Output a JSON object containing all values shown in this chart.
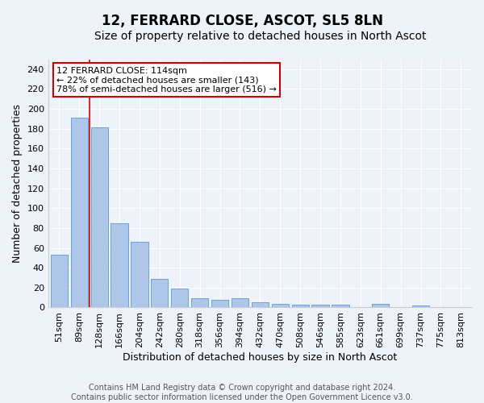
{
  "title": "12, FERRARD CLOSE, ASCOT, SL5 8LN",
  "subtitle": "Size of property relative to detached houses in North Ascot",
  "xlabel": "Distribution of detached houses by size in North Ascot",
  "ylabel": "Number of detached properties",
  "categories": [
    "51sqm",
    "89sqm",
    "128sqm",
    "166sqm",
    "204sqm",
    "242sqm",
    "280sqm",
    "318sqm",
    "356sqm",
    "394sqm",
    "432sqm",
    "470sqm",
    "508sqm",
    "546sqm",
    "585sqm",
    "623sqm",
    "661sqm",
    "699sqm",
    "737sqm",
    "775sqm",
    "813sqm"
  ],
  "values": [
    53,
    191,
    181,
    85,
    66,
    29,
    19,
    9,
    8,
    9,
    5,
    4,
    3,
    3,
    3,
    0,
    4,
    0,
    2,
    0,
    0
  ],
  "bar_color": "#aec6e8",
  "bar_edge_color": "#5b9bd5",
  "ylim": [
    0,
    250
  ],
  "yticks": [
    0,
    20,
    40,
    60,
    80,
    100,
    120,
    140,
    160,
    180,
    200,
    220,
    240
  ],
  "red_line_x": 1.5,
  "annotation_line1": "12 FERRARD CLOSE: 114sqm",
  "annotation_line2": "← 22% of detached houses are smaller (143)",
  "annotation_line3": "78% of semi-detached houses are larger (516) →",
  "annotation_box_color": "#ffffff",
  "annotation_box_edge": "#cc0000",
  "footer_line1": "Contains HM Land Registry data © Crown copyright and database right 2024.",
  "footer_line2": "Contains public sector information licensed under the Open Government Licence v3.0.",
  "background_color": "#eef2f9",
  "grid_color": "#ffffff",
  "title_fontsize": 12,
  "subtitle_fontsize": 10,
  "axis_label_fontsize": 9,
  "tick_fontsize": 8,
  "annotation_fontsize": 8,
  "footer_fontsize": 7
}
